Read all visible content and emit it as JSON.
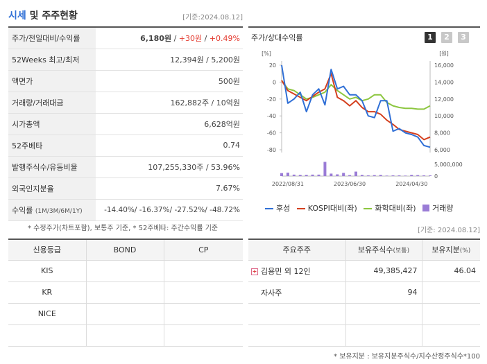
{
  "header": {
    "title_a": "시세",
    "title_b": " 및 주주현황",
    "date": "[기준:2024.08.12]"
  },
  "summary": {
    "rows": [
      {
        "label": "주가/전일대비/수익률",
        "v1": "6,180원",
        "sep1": " / ",
        "v2": "+30원",
        "sep2": " / ",
        "v3": "+0.49%"
      },
      {
        "label": "52Weeks 최고/최저",
        "value": "12,394원 / 5,200원"
      },
      {
        "label": "액면가",
        "value": "500원"
      },
      {
        "label": "거래량/거래대금",
        "value": "162,882주 / 10억원"
      },
      {
        "label": "시가총액",
        "value": "6,628억원"
      },
      {
        "label": "52주베타",
        "value": "0.74"
      },
      {
        "label": "발행주식수/유동비율",
        "value": "107,255,330주 / 53.96%"
      },
      {
        "label": "외국인지분율",
        "value": "7.67%"
      },
      {
        "label": "수익률",
        "label_small": "(1M/3M/6M/1Y)",
        "value": "-14.40%/ -16.37%/ -27.52%/ -48.72%"
      }
    ],
    "note": "* 수정주가(차트포함), 보통주 기준, * 52주베타: 주간수익률 기준"
  },
  "chart": {
    "title": "주가/상대수익률",
    "pages": [
      "1",
      "2",
      "3"
    ],
    "left_unit": "[%]",
    "right_unit": "[원]",
    "left_ticks": [
      "20",
      "0",
      "-20",
      "-40",
      "-60",
      "-80"
    ],
    "right_ticks": [
      "16,000",
      "14,000",
      "12,000",
      "10,000",
      "8,000",
      "6,000"
    ],
    "vol_tick": "5,000,000",
    "vol_zero": "0",
    "x_ticks": [
      "2022/08/31",
      "2023/06/30",
      "2024/04/30"
    ],
    "legend": [
      "후성",
      "KOSPI대비(좌)",
      "화학대비(좌)",
      "거래량"
    ],
    "colors": {
      "stock": "#2f6fd6",
      "kospi": "#d4401f",
      "chem": "#8cc63f",
      "volume": "#9a7cd6"
    },
    "date": "[기준: 2024.08.12]"
  },
  "chart_data": {
    "type": "line",
    "x_ticks": [
      "2022/08/31",
      "2023/06/30",
      "2024/04/30"
    ],
    "y_left_range": [
      -80,
      20
    ],
    "y_right_range": [
      6000,
      16000
    ],
    "series": [
      {
        "name": "후성",
        "values": [
          20,
          -25,
          -20,
          -12,
          -35,
          -15,
          -8,
          -27,
          15,
          -8,
          -5,
          -15,
          -15,
          -22,
          -40,
          -42,
          -22,
          -22,
          -58,
          -55,
          -60,
          -62,
          -65,
          -75,
          -77
        ]
      },
      {
        "name": "KOSPI대비(좌)",
        "values": [
          2,
          -10,
          -14,
          -18,
          -22,
          -17,
          -12,
          -8,
          10,
          -18,
          -22,
          -28,
          -22,
          -30,
          -35,
          -35,
          -38,
          -45,
          -50,
          -56,
          -58,
          -60,
          -62,
          -68,
          -65
        ]
      },
      {
        "name": "화학대비(좌)",
        "values": [
          2,
          -8,
          -10,
          -15,
          -20,
          -18,
          -15,
          -12,
          -3,
          -10,
          -15,
          -20,
          -18,
          -22,
          -20,
          -15,
          -15,
          -24,
          -28,
          -30,
          -31,
          -31,
          -32,
          -32,
          -28
        ]
      },
      {
        "name": "거래량",
        "values": [
          1200000,
          1400000,
          600000,
          500000,
          500000,
          600000,
          600000,
          5700000,
          1000000,
          700000,
          1300000,
          400000,
          1800000,
          500000,
          300000,
          400000,
          500000,
          200000,
          300000,
          300000,
          200000,
          500000,
          400000,
          300000,
          300000
        ]
      }
    ]
  },
  "credit": {
    "headers": [
      "신용등급",
      "BOND",
      "CP"
    ],
    "rows": [
      [
        "KIS",
        "",
        ""
      ],
      [
        "KR",
        "",
        ""
      ],
      [
        "NICE",
        "",
        ""
      ],
      [
        "",
        "",
        ""
      ]
    ]
  },
  "holders": {
    "headers": [
      "주요주주",
      "보유주식수",
      "(보통)",
      "보유지분",
      "(%)"
    ],
    "rows": [
      {
        "name": "김용민 외 12인",
        "shares": "49,385,427",
        "ratio": "46.04",
        "expand": "+"
      },
      {
        "name": "자사주",
        "shares": "94",
        "ratio": ""
      },
      {
        "name": "",
        "shares": "",
        "ratio": ""
      },
      {
        "name": "",
        "shares": "",
        "ratio": ""
      }
    ],
    "note": "* 보유지분 : 보유지분주식수/지수산정주식수*100"
  }
}
